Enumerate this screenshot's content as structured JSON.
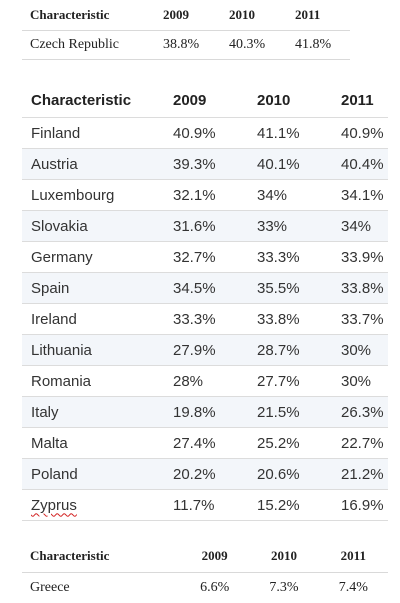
{
  "table_top": {
    "headers": [
      "Characteristic",
      "2009",
      "2010",
      "2011"
    ],
    "rows": [
      [
        "Czech Republic",
        "38.8%",
        "40.3%",
        "41.8%"
      ]
    ]
  },
  "table_main": {
    "headers": [
      "Characteristic",
      "2009",
      "2010",
      "2011"
    ],
    "rows": [
      [
        "Finland",
        "40.9%",
        "41.1%",
        "40.9%"
      ],
      [
        "Austria",
        "39.3%",
        "40.1%",
        "40.4%"
      ],
      [
        "Luxembourg",
        "32.1%",
        "34%",
        "34.1%"
      ],
      [
        "Slovakia",
        "31.6%",
        "33%",
        "34%"
      ],
      [
        "Germany",
        "32.7%",
        "33.3%",
        "33.9%"
      ],
      [
        "Spain",
        "34.5%",
        "35.5%",
        "33.8%"
      ],
      [
        "Ireland",
        "33.3%",
        "33.8%",
        "33.7%"
      ],
      [
        "Lithuania",
        "27.9%",
        "28.7%",
        "30%"
      ],
      [
        "Romania",
        "28%",
        "27.7%",
        "30%"
      ],
      [
        "Italy",
        "19.8%",
        "21.5%",
        "26.3%"
      ],
      [
        "Malta",
        "27.4%",
        "25.2%",
        "22.7%"
      ],
      [
        "Poland",
        "20.2%",
        "20.6%",
        "21.2%"
      ],
      [
        "Zyprus",
        "11.7%",
        "15.2%",
        "16.9%"
      ]
    ]
  },
  "table_bottom": {
    "headers": [
      "Characteristic",
      "2009",
      "2010",
      "2011"
    ],
    "rows": [
      [
        "Greece",
        "6.6%",
        "7.3%",
        "7.4%"
      ]
    ]
  }
}
